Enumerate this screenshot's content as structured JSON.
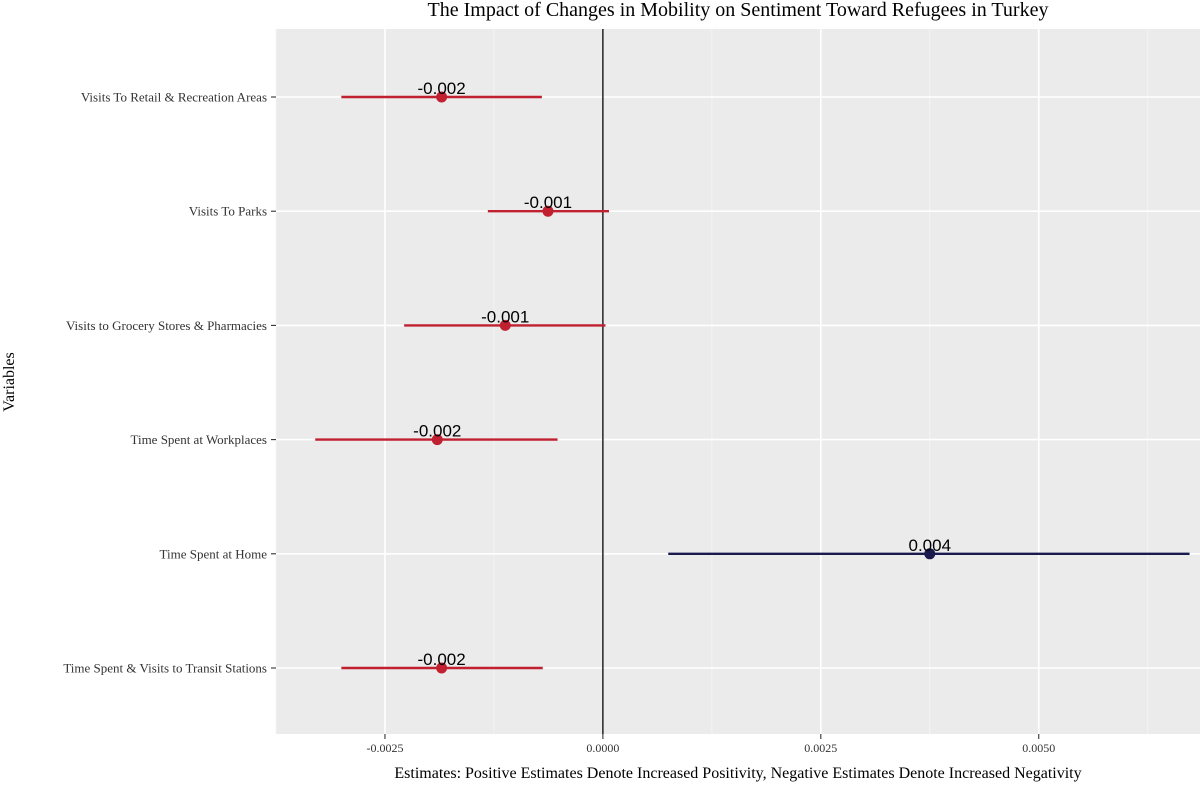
{
  "chart_data": {
    "type": "scatter",
    "title": "The Impact of Changes in Mobility on Sentiment Toward Refugees in Turkey",
    "xlabel": "Estimates: Positive Estimates Denote Increased Positivity, Negative Estimates Denote Increased Negativity",
    "ylabel": "Variables",
    "xlim": [
      -0.00375,
      0.00685
    ],
    "x_ticks": [
      {
        "value": -0.0025,
        "label": "-0.0025"
      },
      {
        "value": 0.0,
        "label": "0.0000"
      },
      {
        "value": 0.0025,
        "label": "0.0025"
      },
      {
        "value": 0.005,
        "label": "0.0050"
      }
    ],
    "reference_line": 0.0,
    "grid": true,
    "panel_background": "#EBEBEB",
    "colors": {
      "negative": "#C0202F",
      "positive": "#1A1A4E",
      "reference": "#000000"
    },
    "series": [
      {
        "category": "Visits To Retail & Recreation Areas",
        "estimate": -0.00185,
        "lower": -0.003,
        "upper": -0.0007,
        "label": "-0.002"
      },
      {
        "category": "Visits To Parks",
        "estimate": -0.00063,
        "lower": -0.00132,
        "upper": 7e-05,
        "label": "-0.001"
      },
      {
        "category": "Visits to Grocery Stores & Pharmacies",
        "estimate": -0.00112,
        "lower": -0.00228,
        "upper": 3e-05,
        "label": "-0.001"
      },
      {
        "category": "Time Spent at Workplaces",
        "estimate": -0.0019,
        "lower": -0.0033,
        "upper": -0.00052,
        "label": "-0.002"
      },
      {
        "category": "Time Spent at Home",
        "estimate": 0.00375,
        "lower": 0.00075,
        "upper": 0.00673,
        "label": "0.004"
      },
      {
        "category": "Time Spent & Visits to Transit Stations",
        "estimate": -0.00185,
        "lower": -0.003,
        "upper": -0.00069,
        "label": "-0.002"
      }
    ]
  }
}
